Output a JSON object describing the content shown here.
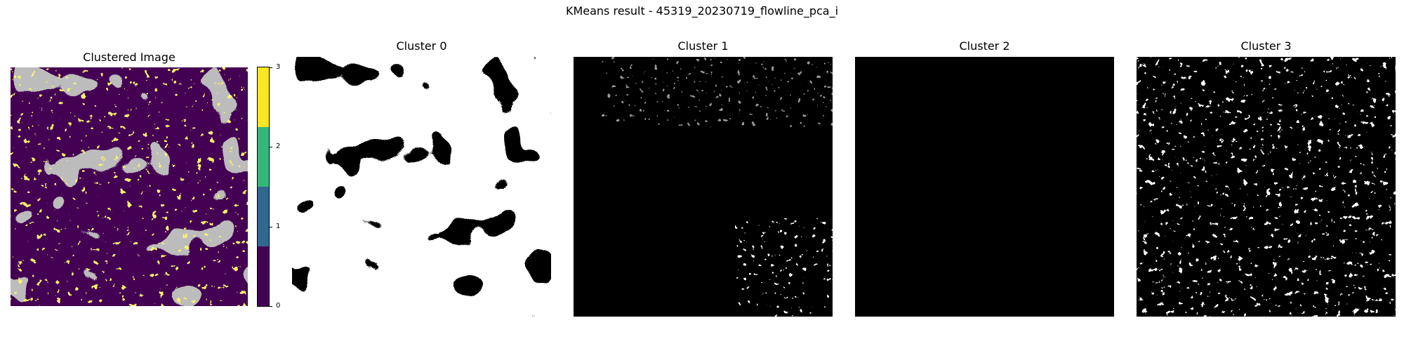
{
  "figure": {
    "title": "KMeans result - 45319_20230719_flowline_pca_i"
  },
  "chart_data": [
    {
      "type": "heatmap",
      "title": "Clustered Image",
      "colormap": "viridis (4 discrete levels)",
      "value_range": [
        0,
        3
      ],
      "colorbar": {
        "ticks": [
          "0",
          "1",
          "2",
          "3"
        ],
        "colors": [
          "#440154",
          "#31688e",
          "#35b779",
          "#fde725"
        ]
      },
      "class_colors_shown": {
        "background": "#440154",
        "cluster_patches": "#808080",
        "cluster_sparse": "#fde725"
      },
      "axes": "off"
    },
    {
      "type": "heatmap",
      "title": "Cluster 0",
      "colormap": "gray",
      "mask": "binary",
      "dominant": "white",
      "features": "large black blobs",
      "axes": "off"
    },
    {
      "type": "heatmap",
      "title": "Cluster 1",
      "colormap": "gray",
      "mask": "binary",
      "dominant": "black",
      "features": "sparse white specks, clustered at lower right",
      "axes": "off"
    },
    {
      "type": "heatmap",
      "title": "Cluster 2",
      "colormap": "gray",
      "mask": "binary",
      "dominant": "black",
      "features": "none",
      "axes": "off"
    },
    {
      "type": "heatmap",
      "title": "Cluster 3",
      "colormap": "gray",
      "mask": "binary",
      "dominant": "black",
      "features": "many scattered white specks and lines",
      "axes": "off"
    }
  ]
}
